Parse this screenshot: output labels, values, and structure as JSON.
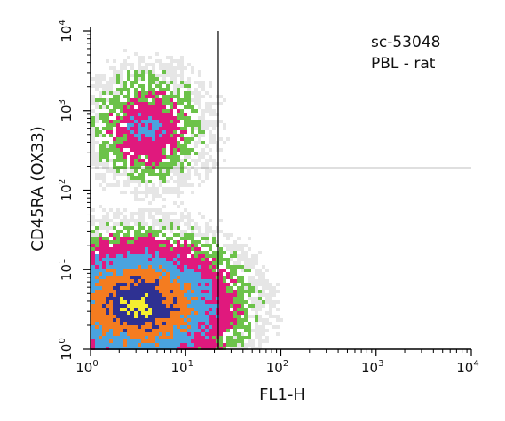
{
  "chart_data": {
    "type": "heatmap",
    "subtype": "flow-cytometry density dot plot (quadrant)",
    "xlabel": "FL1-H",
    "ylabel": "CD45RA (OX33)",
    "x_scale": "log",
    "y_scale": "log",
    "xlim": [
      1,
      10000
    ],
    "ylim": [
      1,
      10000
    ],
    "x_ticks": [
      {
        "base": "10",
        "exp": "0"
      },
      {
        "base": "10",
        "exp": "1"
      },
      {
        "base": "10",
        "exp": "2"
      },
      {
        "base": "10",
        "exp": "3"
      },
      {
        "base": "10",
        "exp": "4"
      }
    ],
    "y_ticks": [
      {
        "base": "10",
        "exp": "0"
      },
      {
        "base": "10",
        "exp": "1"
      },
      {
        "base": "10",
        "exp": "2"
      },
      {
        "base": "10",
        "exp": "3"
      },
      {
        "base": "10",
        "exp": "4"
      }
    ],
    "annotations": [
      "sc-53048",
      "PBL - rat"
    ],
    "legend_placement": "none",
    "grid": false,
    "quadrant_gates": {
      "x": 22,
      "y": 190
    },
    "density_levels": [
      {
        "level": "lowest",
        "color": "#e6e6e6"
      },
      {
        "level": "low",
        "color": "#6cc24a"
      },
      {
        "level": "medium-low",
        "color": "#e0197d"
      },
      {
        "level": "medium",
        "color": "#4aa3df"
      },
      {
        "level": "medium-high",
        "color": "#f47c20"
      },
      {
        "level": "high",
        "color": "#2e3192"
      },
      {
        "level": "highest",
        "color": "#f5ee30"
      }
    ],
    "populations": [
      {
        "name": "main",
        "center": [
          3.2,
          3.6
        ],
        "spread_log10": [
          0.3,
          0.25
        ],
        "peak_level": "highest"
      },
      {
        "name": "upper",
        "center": [
          4,
          600
        ],
        "spread_log10": [
          0.3,
          0.35
        ],
        "peak_level": "medium"
      }
    ]
  }
}
